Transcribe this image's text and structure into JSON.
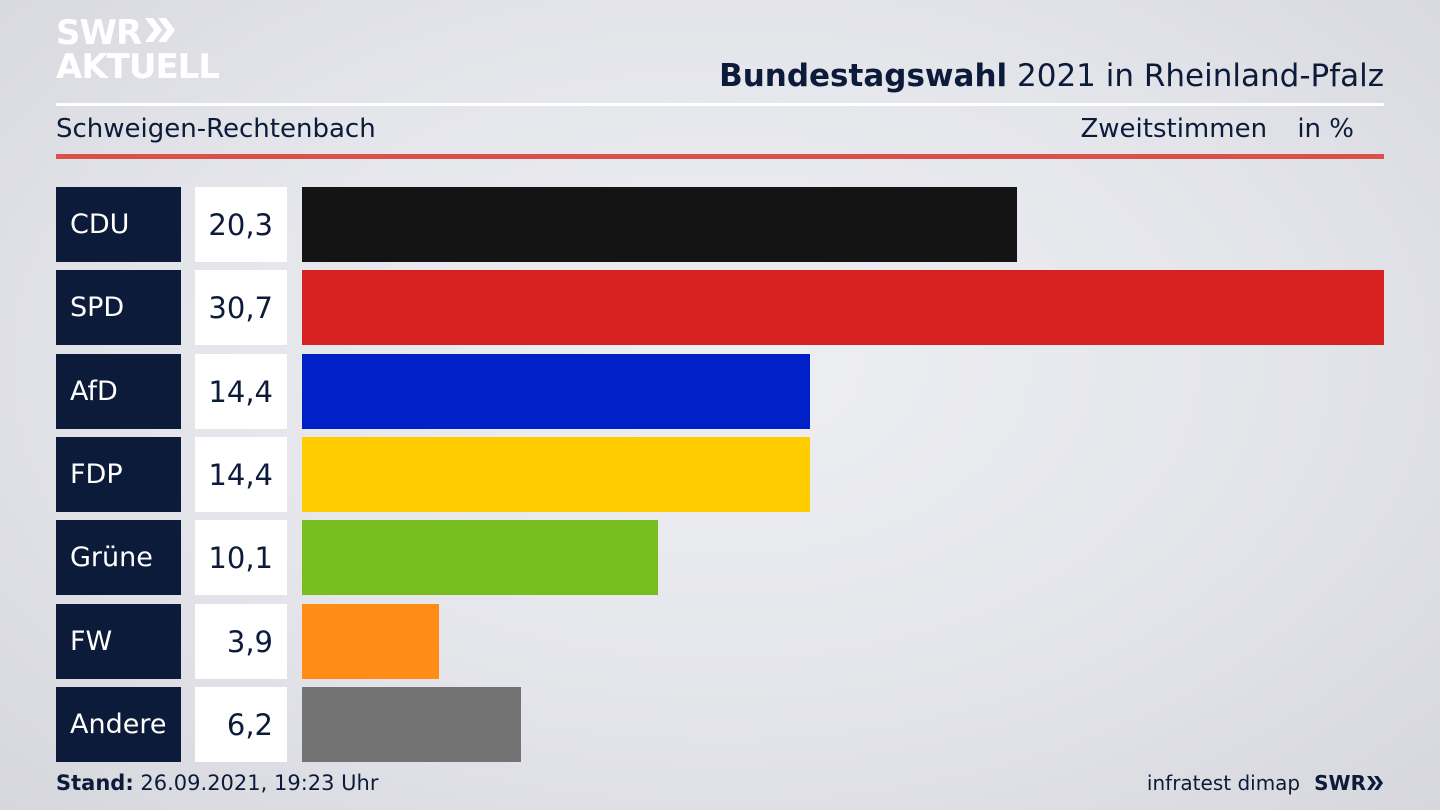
{
  "logo": {
    "line1": "SWR",
    "line2": "AKTUELL"
  },
  "header": {
    "title_bold": "Bundestagswahl",
    "title_rest": " 2021 in Rheinland-Pfalz",
    "subtitle": "Schweigen-Rechtenbach",
    "vote_type": "Zweitstimmen",
    "unit": "in %"
  },
  "chart_data": {
    "type": "bar",
    "orientation": "horizontal",
    "categories": [
      "CDU",
      "SPD",
      "AfD",
      "FDP",
      "Grüne",
      "FW",
      "Andere"
    ],
    "values": [
      20.3,
      30.7,
      14.4,
      14.4,
      10.1,
      3.9,
      6.2
    ],
    "value_labels": [
      "20,3",
      "30,7",
      "14,4",
      "14,4",
      "10,1",
      "3,9",
      "6,2"
    ],
    "colors": [
      "#141414",
      "#d72020",
      "#0021c8",
      "#ffcc00",
      "#77bd1e",
      "#ff8c16",
      "#737373"
    ],
    "xlim": [
      0,
      30.7
    ]
  },
  "footer": {
    "stand_label": "Stand:",
    "stand_value": " 26.09.2021, 19:23 Uhr",
    "source": "infratest dimap",
    "brand": "SWR"
  }
}
